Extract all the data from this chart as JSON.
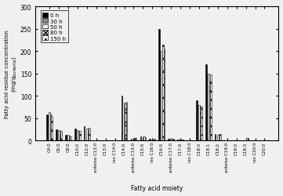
{
  "categories": [
    "C4:0",
    "C6:0",
    "C8:0",
    "C10:0",
    "C12:0",
    "anteiso C13:0",
    "C13:0",
    "iso C14:0",
    "C14:0",
    "anteiso C15:0",
    "C15:0",
    "iso C16:0",
    "C16:0",
    "anteiso C17:0",
    "C17:0",
    "iso C18:0",
    "C18:0",
    "C18:1",
    "C18:2",
    "anteiso C19:0",
    "C19:0",
    "C18:3",
    "iso C20:0",
    "C20:0"
  ],
  "vals": {
    "0 h": [
      58,
      25,
      12,
      27,
      32,
      0,
      1,
      0,
      100,
      4,
      9,
      4,
      250,
      4,
      3,
      1,
      90,
      170,
      15,
      1,
      0,
      0,
      0,
      0
    ],
    "30 h": [
      0,
      0,
      0,
      0,
      0,
      0,
      0,
      0,
      0,
      0,
      0,
      0,
      0,
      0,
      0,
      0,
      0,
      0,
      0,
      0,
      0,
      0,
      0,
      0
    ],
    "50 h": [
      63,
      24,
      12,
      24,
      27,
      0,
      0,
      0,
      85,
      6,
      9,
      4,
      200,
      4,
      3,
      1,
      80,
      150,
      13,
      0,
      0,
      0,
      0,
      0
    ],
    "80 h": [
      60,
      22,
      11,
      22,
      26,
      0,
      0,
      0,
      85,
      6,
      9,
      4,
      215,
      4,
      3,
      1,
      78,
      133,
      14,
      0,
      0,
      5,
      0,
      0
    ],
    "150 h": [
      55,
      21,
      10,
      21,
      28,
      0,
      0,
      0,
      87,
      5,
      8,
      4,
      205,
      4,
      3,
      1,
      75,
      148,
      14,
      0,
      0,
      5,
      0,
      0
    ]
  },
  "bar_styles": [
    {
      "color": "black",
      "hatch": null,
      "edgecolor": "black",
      "lw": 0.4
    },
    {
      "color": "#888888",
      "hatch": null,
      "edgecolor": "black",
      "lw": 0.4
    },
    {
      "color": "white",
      "hatch": null,
      "edgecolor": "black",
      "lw": 0.4
    },
    {
      "color": "white",
      "hatch": "xx",
      "edgecolor": "black",
      "lw": 0.4
    },
    {
      "color": "white",
      "hatch": "...",
      "edgecolor": "black",
      "lw": 0.4
    }
  ],
  "legend_labels": [
    "0 h",
    "30 h",
    "50 h",
    "80 h",
    "150 h"
  ],
  "ylabel": "Fatty acid residue concentration\n(mg/g$_{butterfat}$)",
  "xlabel": "Fatty acid moiety",
  "ylim": [
    0,
    300
  ],
  "yticks": [
    0,
    50,
    100,
    150,
    200,
    250,
    300
  ],
  "bar_width": 0.13,
  "bg_color": "#f0f0f0"
}
